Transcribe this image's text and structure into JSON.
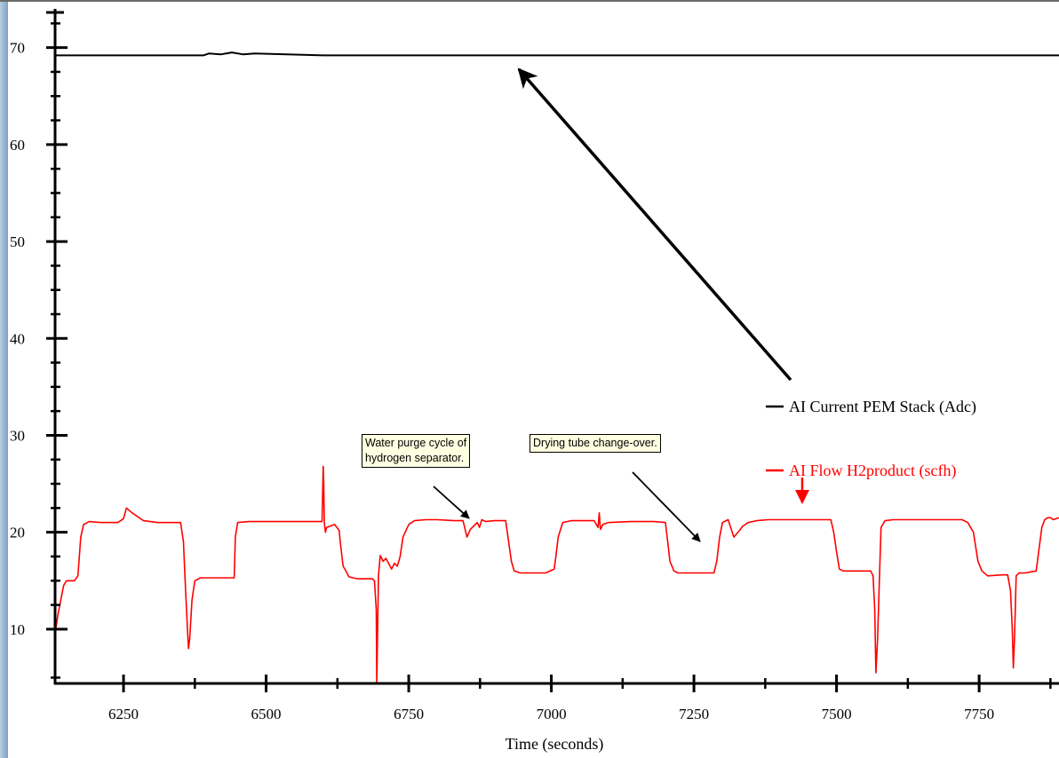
{
  "chart_data": {
    "type": "line",
    "title": "",
    "xlabel": "Time (seconds)",
    "ylabel": "",
    "xlim": [
      6130,
      7890
    ],
    "ylim": [
      4.4,
      74
    ],
    "xticks": [
      6250,
      6500,
      6750,
      7000,
      7250,
      7500,
      7750
    ],
    "yticks": [
      10,
      20,
      30,
      40,
      50,
      60,
      70
    ],
    "grid": false,
    "legend_position": "right",
    "series": [
      {
        "name": "AI Current PEM Stack (Adc)",
        "color": "#000000",
        "x": [
          6130,
          6260,
          6390,
          6400,
          6420,
          6440,
          6460,
          6480,
          6600,
          6800,
          7000,
          7250,
          7500,
          7750,
          7890
        ],
        "y": [
          69.2,
          69.2,
          69.2,
          69.4,
          69.3,
          69.5,
          69.3,
          69.4,
          69.2,
          69.2,
          69.2,
          69.2,
          69.2,
          69.2,
          69.2
        ]
      },
      {
        "name": "AI Flow H2product (scfh)",
        "color": "#ff0000",
        "x": [
          6130,
          6135,
          6145,
          6150,
          6160,
          6164,
          6170,
          6175,
          6180,
          6190,
          6210,
          6240,
          6250,
          6255,
          6265,
          6285,
          6310,
          6335,
          6350,
          6355,
          6358,
          6362,
          6364,
          6366,
          6370,
          6375,
          6385,
          6400,
          6420,
          6444,
          6446,
          6450,
          6470,
          6520,
          6570,
          6598,
          6600,
          6601,
          6602,
          6604,
          6606,
          6620,
          6628,
          6630,
          6635,
          6640,
          6645,
          6660,
          6680,
          6686,
          6690,
          6693,
          6694,
          6697,
          6700,
          6705,
          6710,
          6720,
          6725,
          6730,
          6735,
          6740,
          6750,
          6760,
          6780,
          6800,
          6830,
          6845,
          6848,
          6852,
          6858,
          6870,
          6874,
          6878,
          6885,
          6900,
          6920,
          6924,
          6930,
          6935,
          6945,
          6960,
          6990,
          7005,
          7008,
          7012,
          7020,
          7035,
          7050,
          7075,
          7082,
          7084,
          7086,
          7088,
          7090,
          7100,
          7140,
          7180,
          7200,
          7204,
          7208,
          7215,
          7222,
          7230,
          7260,
          7285,
          7290,
          7295,
          7300,
          7310,
          7320,
          7330,
          7335,
          7340,
          7345,
          7360,
          7380,
          7400,
          7430,
          7480,
          7490,
          7495,
          7500,
          7505,
          7512,
          7530,
          7560,
          7564,
          7567,
          7569,
          7572,
          7575,
          7578,
          7585,
          7600,
          7680,
          7720,
          7730,
          7740,
          7748,
          7755,
          7765,
          7790,
          7800,
          7805,
          7808,
          7810,
          7812,
          7815,
          7820,
          7830,
          7850,
          7860,
          7865,
          7870,
          7875,
          7880,
          7890
        ],
        "y": [
          9.5,
          11.5,
          14.5,
          15,
          15,
          15,
          15.5,
          19.5,
          20.8,
          21.1,
          21.0,
          21.0,
          21.4,
          22.5,
          22.0,
          21.2,
          21.0,
          21.0,
          21.0,
          19.0,
          15.0,
          10.0,
          8.0,
          9.0,
          13.0,
          15.0,
          15.3,
          15.3,
          15.3,
          15.3,
          19.5,
          21.0,
          21.1,
          21.1,
          21.1,
          21.1,
          26.8,
          25.0,
          21.0,
          20.0,
          20.5,
          20.8,
          20.2,
          19.0,
          16.5,
          16.0,
          15.4,
          15.2,
          15.2,
          15.2,
          15.0,
          12.0,
          4.4,
          15.5,
          17.6,
          17.0,
          17.3,
          16.2,
          16.8,
          16.5,
          17.5,
          19.5,
          20.8,
          21.2,
          21.3,
          21.3,
          21.2,
          21.2,
          20.5,
          19.5,
          20.3,
          21.0,
          20.5,
          21.3,
          21.1,
          21.2,
          21.2,
          19.5,
          17.0,
          16.0,
          15.8,
          15.8,
          15.8,
          16.2,
          17.5,
          19.5,
          21.0,
          21.2,
          21.2,
          21.2,
          20.5,
          22.0,
          20.3,
          20.5,
          20.8,
          21.0,
          21.1,
          21.1,
          21.0,
          19.0,
          17.0,
          16.0,
          15.8,
          15.8,
          15.8,
          15.8,
          17.0,
          19.5,
          21.0,
          21.3,
          19.5,
          20.2,
          20.6,
          20.8,
          21.0,
          21.2,
          21.3,
          21.3,
          21.3,
          21.3,
          21.3,
          20.0,
          18.0,
          16.2,
          16.0,
          16.0,
          16.0,
          15.5,
          12.0,
          5.5,
          9.0,
          15.0,
          20.5,
          21.2,
          21.3,
          21.3,
          21.3,
          21.0,
          20.0,
          17.0,
          16.0,
          15.5,
          15.6,
          15.6,
          14.0,
          10.0,
          6.0,
          9.0,
          15.5,
          15.8,
          15.8,
          16.0,
          20.5,
          21.3,
          21.5,
          21.5,
          21.3,
          21.5
        ]
      }
    ],
    "annotations": [
      {
        "text_lines": [
          "Water purge cycle of",
          "hydrogen separator."
        ],
        "arrow_to": [
          6855,
          20.2
        ]
      },
      {
        "text_lines": [
          "Drying tube change-over."
        ],
        "arrow_to": [
          7262,
          17.8
        ]
      }
    ]
  }
}
